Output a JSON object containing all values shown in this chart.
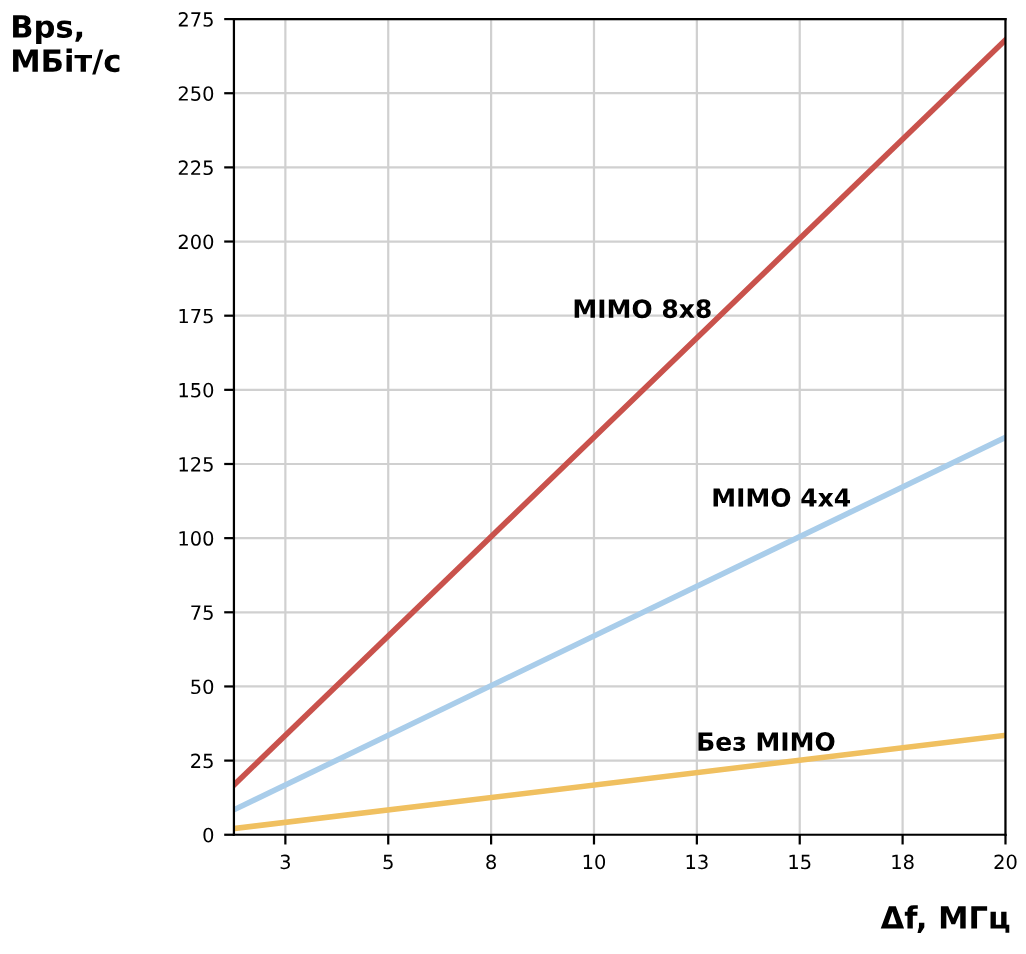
{
  "chart_data": {
    "type": "line",
    "xlabel": "Δf, МГц",
    "ylabel": "Bps,\nМБіт/с",
    "x": [
      1.25,
      20
    ],
    "series": [
      {
        "name": "MIMO 8x8",
        "color": "#c9524c",
        "values": [
          16.75,
          268
        ]
      },
      {
        "name": "MIMO 4x4",
        "color": "#a9cdea",
        "values": [
          8.4,
          134
        ]
      },
      {
        "name": "Без MIMO",
        "color": "#f0c060",
        "values": [
          2.1,
          33.5
        ]
      }
    ],
    "xlim": [
      1.25,
      20
    ],
    "xticks": [
      {
        "value": 2.5,
        "label": "3"
      },
      {
        "value": 5,
        "label": "5"
      },
      {
        "value": 7.5,
        "label": "8"
      },
      {
        "value": 10,
        "label": "10"
      },
      {
        "value": 12.5,
        "label": "13"
      },
      {
        "value": 15,
        "label": "15"
      },
      {
        "value": 17.5,
        "label": "18"
      },
      {
        "value": 20,
        "label": "20"
      }
    ],
    "ylim": [
      0,
      275
    ],
    "yticks": [
      0,
      25,
      50,
      75,
      100,
      125,
      150,
      175,
      200,
      225,
      250,
      275
    ],
    "grid": true,
    "marker": "none",
    "line_style": "solid",
    "legend": false
  }
}
